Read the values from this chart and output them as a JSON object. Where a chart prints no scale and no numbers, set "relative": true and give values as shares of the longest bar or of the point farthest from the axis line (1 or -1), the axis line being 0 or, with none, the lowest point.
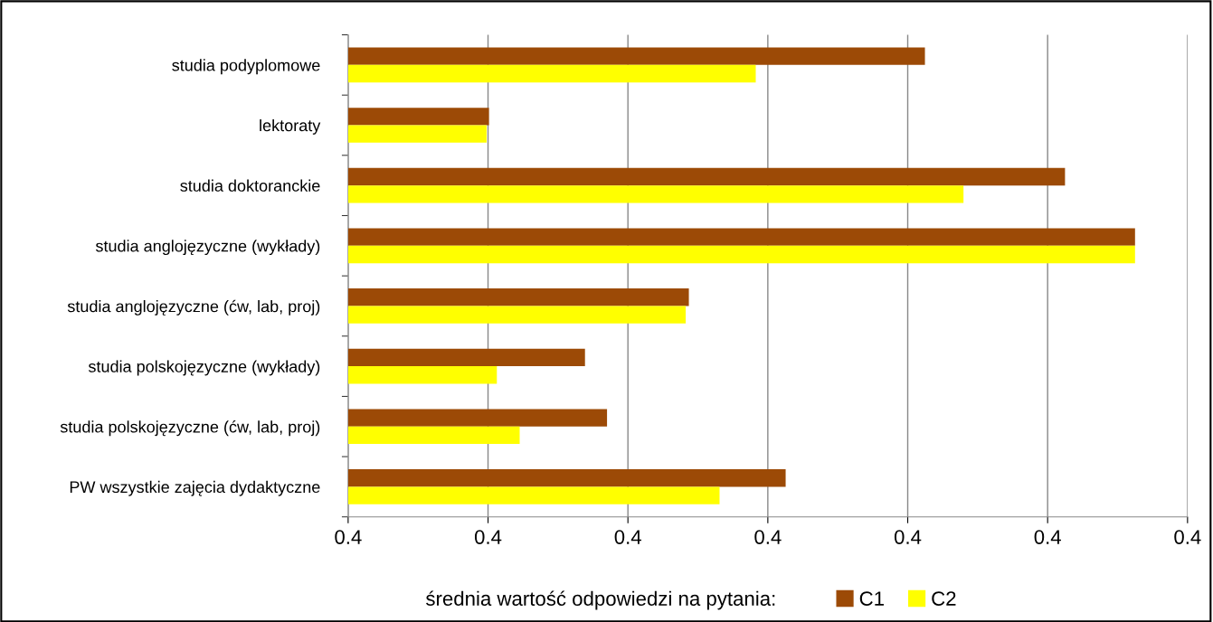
{
  "chart_data": {
    "type": "bar",
    "orientation": "horizontal",
    "relative": true,
    "categories": [
      "studia podyplomowe",
      "lektoraty",
      "studia doktoranckie",
      "studia anglojęzyczne (wykłady)",
      "studia anglojęzyczne (ćw, lab, proj)",
      "studia polskojęzyczne (wykłady)",
      "studia polskojęzyczne (ćw, lab, proj)",
      "PW wszystkie zajęcia dydaktyczne"
    ],
    "series": [
      {
        "name": "C1",
        "color": "#9c4a06",
        "values": [
          0.733,
          0.179,
          0.911,
          1,
          0.433,
          0.301,
          0.329,
          0.556
        ]
      },
      {
        "name": "C2",
        "color": "#ffff00",
        "values": [
          0.518,
          0.176,
          0.782,
          1,
          0.429,
          0.189,
          0.218,
          0.472
        ]
      }
    ],
    "annotations": [
      "0.4",
      "0.4",
      "0.4",
      "0.4",
      "0.4",
      "0.4",
      "0.4"
    ],
    "grid": "x",
    "legend": "bottom",
    "legend_title": "średnia wartość odpowiedzi na pytania:"
  }
}
